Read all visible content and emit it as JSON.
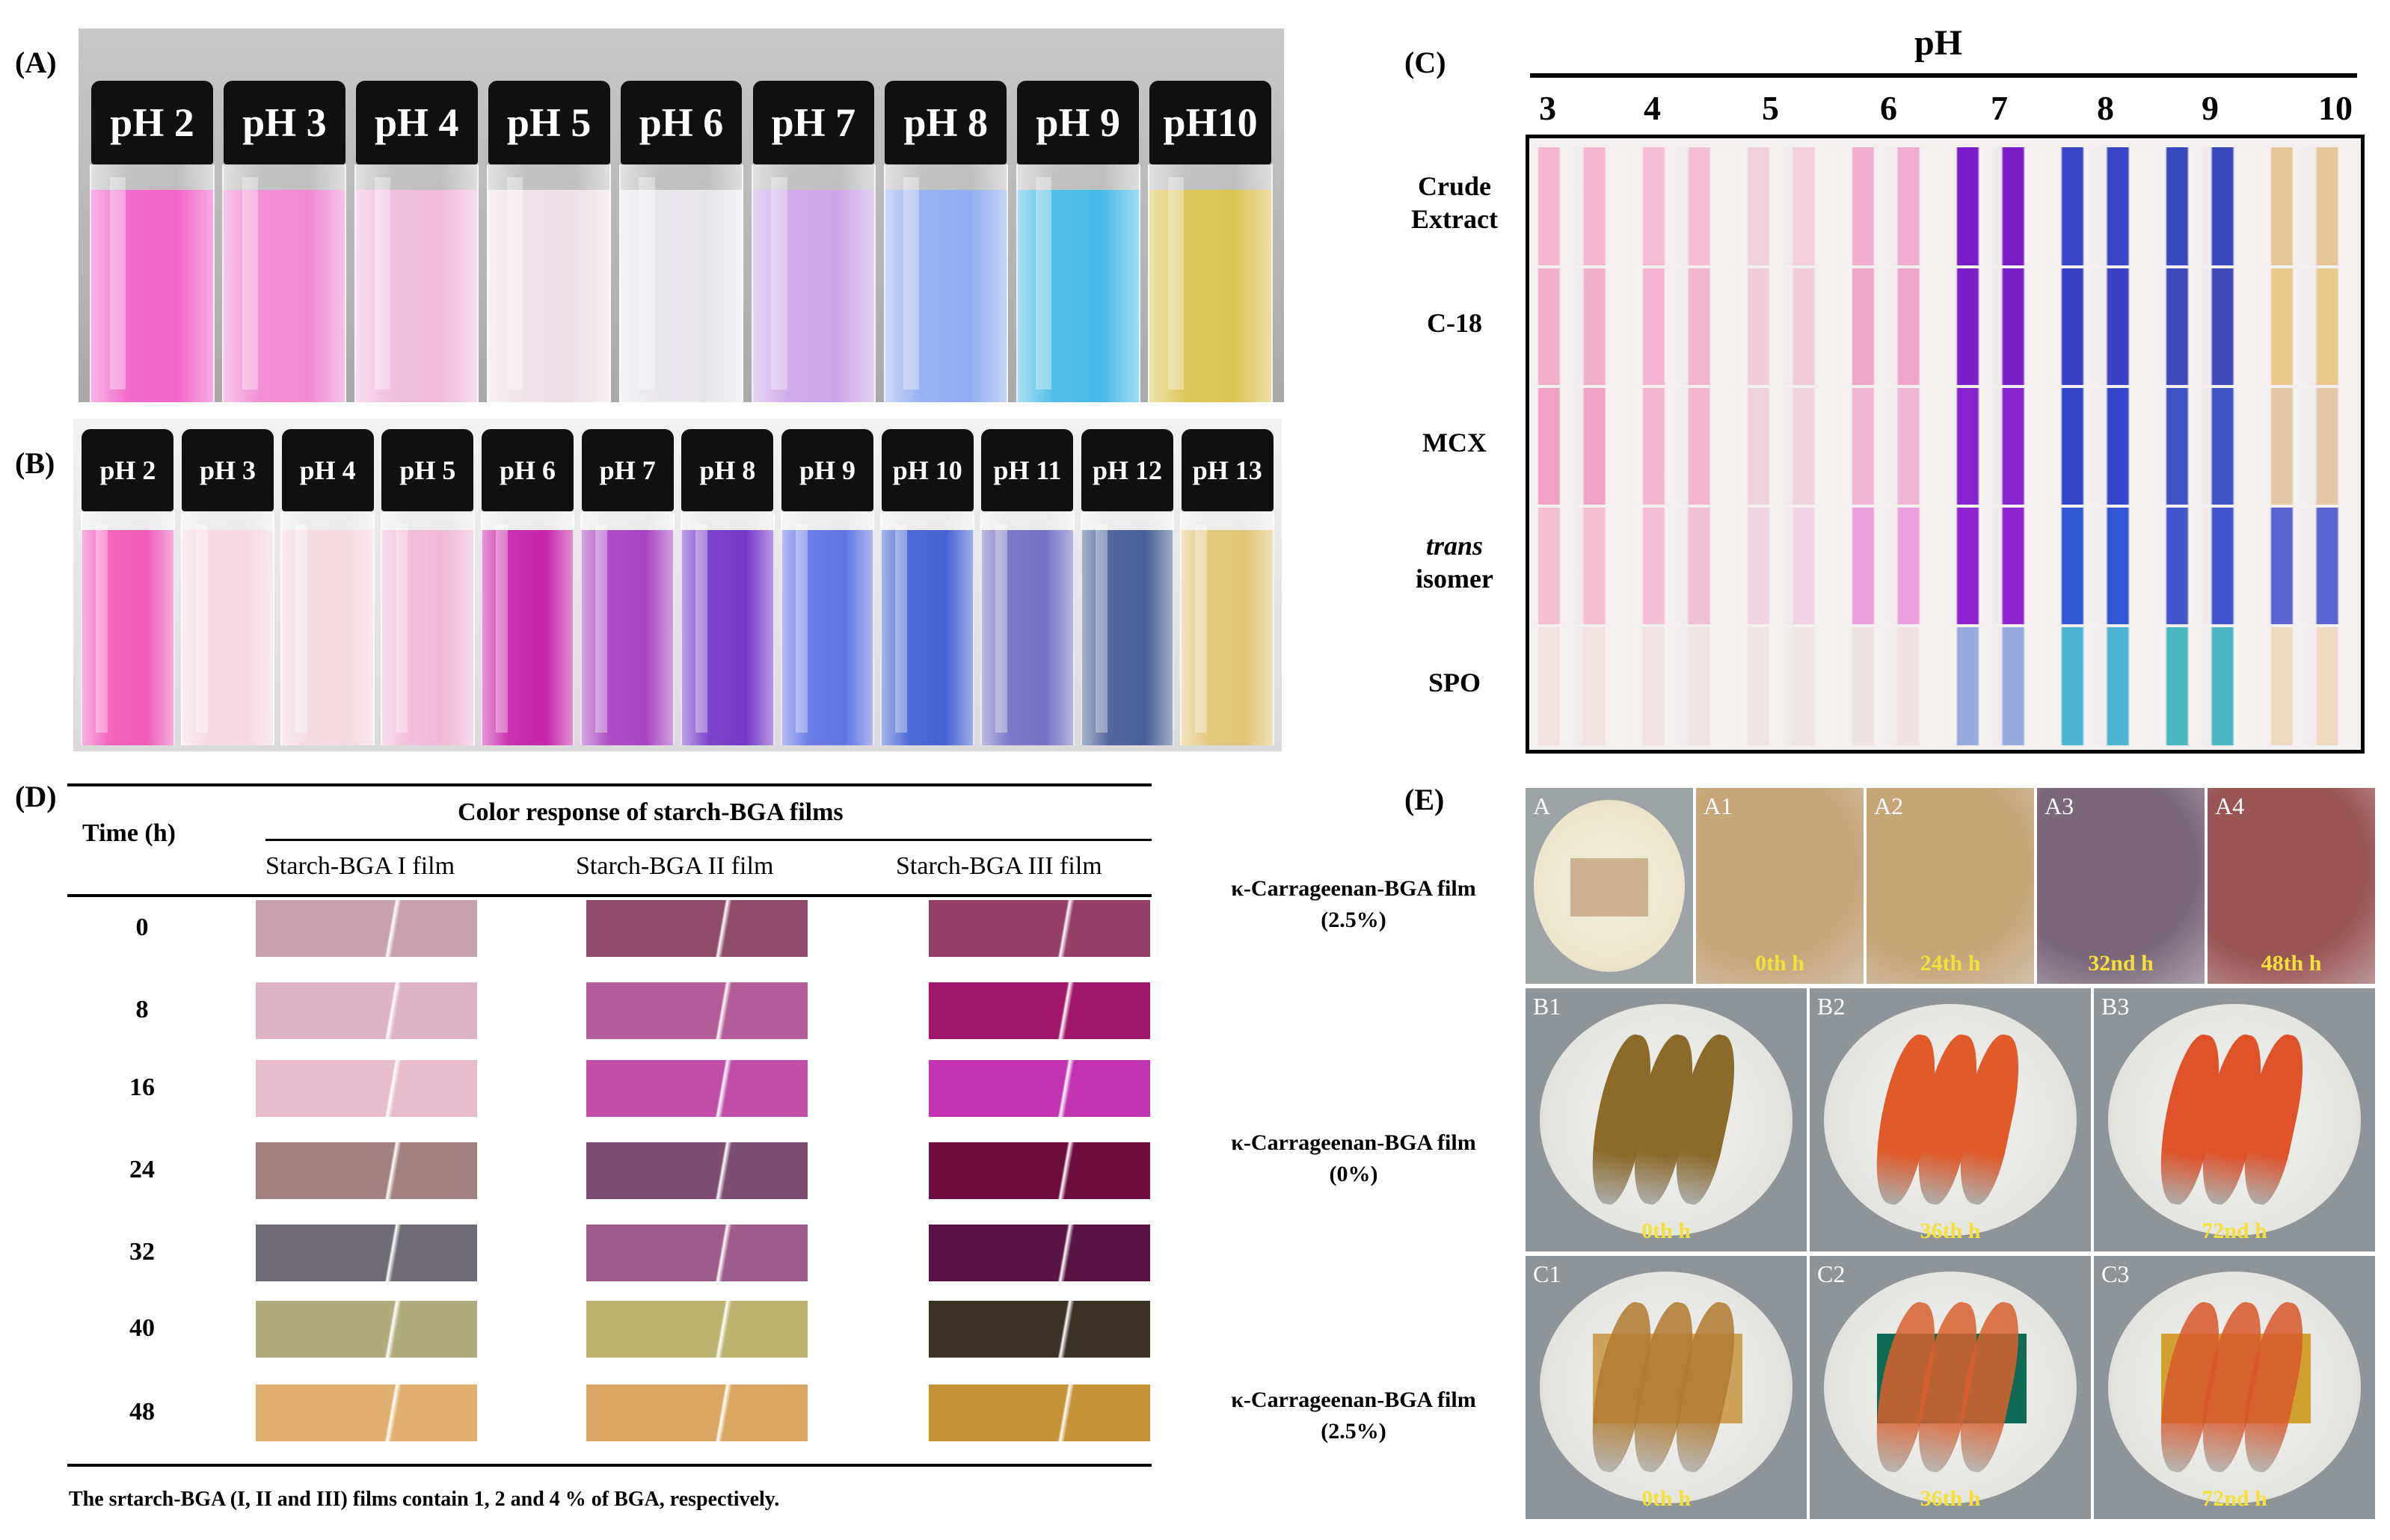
{
  "panel_a": {
    "label": "(A)",
    "vials": [
      {
        "ph": "pH 2",
        "color": "#f15bc5"
      },
      {
        "ph": "pH 3",
        "color": "#f083cf"
      },
      {
        "ph": "pH 4",
        "color": "#efb8da"
      },
      {
        "ph": "pH 5",
        "color": "#ece0e6"
      },
      {
        "ph": "pH 6",
        "color": "#e6e4ea"
      },
      {
        "ph": "pH 7",
        "color": "#caa1e6"
      },
      {
        "ph": "pH 8",
        "color": "#8da8ef"
      },
      {
        "ph": "pH 9",
        "color": "#3eb7e6"
      },
      {
        "ph": "pH10",
        "color": "#d8c149"
      }
    ]
  },
  "panel_b": {
    "label": "(B)",
    "vials": [
      {
        "ph": "pH 2",
        "color": "#f054b7"
      },
      {
        "ph": "pH 3",
        "color": "#f6d6e2"
      },
      {
        "ph": "pH 4",
        "color": "#f3d6de"
      },
      {
        "ph": "pH 5",
        "color": "#f0b6d4"
      },
      {
        "ph": "pH 6",
        "color": "#c21aa6"
      },
      {
        "ph": "pH 7",
        "color": "#a33bbd"
      },
      {
        "ph": "pH 8",
        "color": "#6d2fc4"
      },
      {
        "ph": "pH 9",
        "color": "#5a6de2"
      },
      {
        "ph": "pH 10",
        "color": "#3b5ad0"
      },
      {
        "ph": "pH 11",
        "color": "#6f69c1"
      },
      {
        "ph": "pH 12",
        "color": "#3f5692"
      },
      {
        "ph": "pH 13",
        "color": "#e1c271"
      }
    ]
  },
  "panel_c": {
    "label": "(C)",
    "title": "pH",
    "ph_values": [
      "3",
      "4",
      "5",
      "6",
      "7",
      "8",
      "9",
      "10"
    ],
    "rows": [
      {
        "label_line1": "Crude",
        "label_line2": "Extract",
        "italic": false,
        "colors": [
          "#f3a9c8",
          "#f5b0cc",
          "#f0c8d8",
          "#ef9fc8",
          "#7a1cc8",
          "#3a45c8",
          "#3948bf",
          "#e6c79c"
        ]
      },
      {
        "label_line1": "C-18",
        "label_line2": "",
        "italic": false,
        "colors": [
          "#f0a0c0",
          "#f3a6c7",
          "#eec4d4",
          "#ec92bf",
          "#7b1fc9",
          "#3a41c4",
          "#3f49b9",
          "#ebc88c"
        ]
      },
      {
        "label_line1": "MCX",
        "label_line2": "",
        "italic": false,
        "colors": [
          "#ee8eb8",
          "#f1a9c6",
          "#efcad8",
          "#eea8cb",
          "#8624cc",
          "#3346c9",
          "#3e52c3",
          "#e3c9a6"
        ]
      },
      {
        "label_line1": "trans",
        "label_line2": "isomer",
        "italic": true,
        "colors": [
          "#f4b1ca",
          "#f2b3cd",
          "#efcde0",
          "#e98ad6",
          "#8c22d0",
          "#2f55d2",
          "#4353cc",
          "#5c64d1"
        ]
      },
      {
        "label_line1": "SPO",
        "label_line2": "",
        "italic": false,
        "colors": [
          "#f2dede",
          "#f0e0e0",
          "#eee2e2",
          "#eedfe0",
          "#7f9ad8",
          "#22a5c9",
          "#20a7b6",
          "#ecd5b8"
        ]
      }
    ]
  },
  "panel_d": {
    "label": "(D)",
    "header_time": "Time (h)",
    "header_main": "Color response of starch-BGA films",
    "columns": [
      "Starch-BGA I film",
      "Starch-BGA II film",
      "Starch-BGA III film"
    ],
    "rows": [
      {
        "time": "0",
        "colors": [
          "#c7a1ad",
          "#8e4c68",
          "#953f67"
        ]
      },
      {
        "time": "8",
        "colors": [
          "#ddb4c6",
          "#b25c98",
          "#a01769"
        ]
      },
      {
        "time": "16",
        "colors": [
          "#e7bccc",
          "#c04ea6",
          "#c233b1"
        ]
      },
      {
        "time": "24",
        "colors": [
          "#a18181",
          "#7c4d71",
          "#6d0d3d"
        ]
      },
      {
        "time": "32",
        "colors": [
          "#6f6b74",
          "#9c5c8c",
          "#571444"
        ]
      },
      {
        "time": "40",
        "colors": [
          "#b1ac7e",
          "#bab26e",
          "#3a3325"
        ]
      },
      {
        "time": "48",
        "colors": [
          "#dfb06f",
          "#d9a763",
          "#c59237"
        ]
      }
    ],
    "footnote": "The srtarch-BGA (I, II and III) films contain 1, 2 and 4 % of BGA, respectively."
  },
  "panel_e": {
    "label": "(E)",
    "row_labels": [
      {
        "line1": "κ-Carrageenan-BGA film",
        "line2": "(2.5%)"
      },
      {
        "line1": "κ-Carrageenan-BGA film",
        "line2": "(0%)"
      },
      {
        "line1": "κ-Carrageenan-BGA film",
        "line2": "(2.5%)"
      }
    ],
    "row_a": [
      {
        "id": "A",
        "time": "",
        "color": "#cbb391"
      },
      {
        "id": "A1",
        "time": "0th h",
        "color": "#c7a67a"
      },
      {
        "id": "A2",
        "time": "24th h",
        "color": "#c6a577"
      },
      {
        "id": "A3",
        "time": "32nd h",
        "color": "#7b6779"
      },
      {
        "id": "A4",
        "time": "48th h",
        "color": "#9b5454"
      }
    ],
    "row_b": [
      {
        "id": "B1",
        "time": "0th h",
        "shrimp_color": "#8c6a2a"
      },
      {
        "id": "B2",
        "time": "36th h",
        "shrimp_color": "#e05a2a"
      },
      {
        "id": "B3",
        "time": "72nd h",
        "shrimp_color": "#e0522a"
      }
    ],
    "row_c": [
      {
        "id": "C1",
        "time": "0th h",
        "shrimp_color": "#b07a30",
        "film_color": "#cda25a"
      },
      {
        "id": "C2",
        "time": "36th h",
        "shrimp_color": "#d8602e",
        "film_color": "#0f6b55"
      },
      {
        "id": "C3",
        "time": "72nd h",
        "shrimp_color": "#d8582c",
        "film_color": "#d0a030"
      }
    ]
  }
}
